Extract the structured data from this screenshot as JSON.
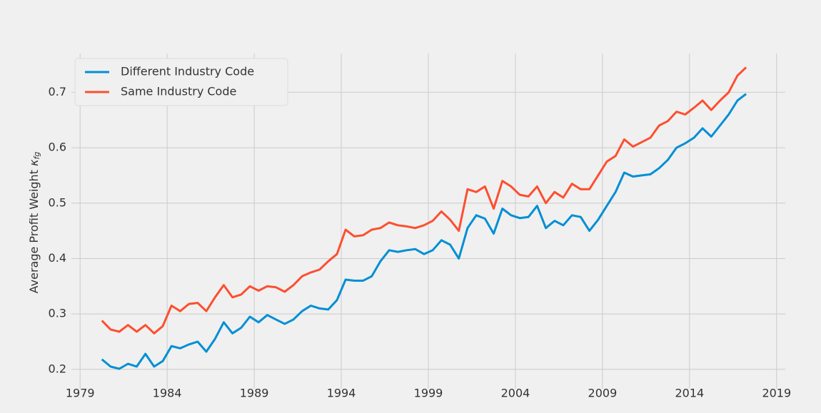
{
  "chart_data": {
    "type": "line",
    "y_label": "Average Profit Weight",
    "y_label_symbol": "κ",
    "y_label_subscript": "fg",
    "x": [
      1980.25,
      1980.75,
      1981.25,
      1981.75,
      1982.25,
      1982.75,
      1983.25,
      1983.75,
      1984.25,
      1984.75,
      1985.25,
      1985.75,
      1986.25,
      1986.75,
      1987.25,
      1987.75,
      1988.25,
      1988.75,
      1989.25,
      1989.75,
      1990.25,
      1990.75,
      1991.25,
      1991.75,
      1992.25,
      1992.75,
      1993.25,
      1993.75,
      1994.25,
      1994.75,
      1995.25,
      1995.75,
      1996.25,
      1996.75,
      1997.25,
      1997.75,
      1998.25,
      1998.75,
      1999.25,
      1999.75,
      2000.25,
      2000.75,
      2001.25,
      2001.75,
      2002.25,
      2002.75,
      2003.25,
      2003.75,
      2004.25,
      2004.75,
      2005.25,
      2005.75,
      2006.25,
      2006.75,
      2007.25,
      2007.75,
      2008.25,
      2008.75,
      2009.25,
      2009.75,
      2010.25,
      2010.75,
      2011.25,
      2011.75,
      2012.25,
      2012.75,
      2013.25,
      2013.75,
      2014.25,
      2014.75,
      2015.25,
      2015.75,
      2016.25,
      2016.75,
      2017.25
    ],
    "series": [
      {
        "name": "Different Industry Code",
        "color": "#008fd5",
        "values": [
          0.218,
          0.205,
          0.201,
          0.21,
          0.205,
          0.228,
          0.205,
          0.215,
          0.242,
          0.238,
          0.245,
          0.25,
          0.232,
          0.255,
          0.285,
          0.265,
          0.275,
          0.295,
          0.285,
          0.298,
          0.29,
          0.282,
          0.29,
          0.305,
          0.315,
          0.31,
          0.308,
          0.325,
          0.362,
          0.36,
          0.36,
          0.368,
          0.395,
          0.415,
          0.412,
          0.415,
          0.417,
          0.408,
          0.415,
          0.433,
          0.425,
          0.4,
          0.455,
          0.478,
          0.472,
          0.445,
          0.49,
          0.478,
          0.473,
          0.475,
          0.495,
          0.455,
          0.468,
          0.46,
          0.478,
          0.475,
          0.45,
          0.47,
          0.495,
          0.52,
          0.555,
          0.548,
          0.55,
          0.552,
          0.563,
          0.578,
          0.6,
          0.608,
          0.618,
          0.635,
          0.62,
          0.64,
          0.66,
          0.685,
          0.697
        ]
      },
      {
        "name": "Same Industry Code",
        "color": "#fc4f30",
        "values": [
          0.288,
          0.272,
          0.268,
          0.28,
          0.268,
          0.28,
          0.265,
          0.278,
          0.315,
          0.305,
          0.318,
          0.32,
          0.305,
          0.33,
          0.352,
          0.33,
          0.335,
          0.35,
          0.342,
          0.35,
          0.348,
          0.34,
          0.352,
          0.368,
          0.375,
          0.38,
          0.395,
          0.408,
          0.452,
          0.44,
          0.442,
          0.452,
          0.455,
          0.465,
          0.46,
          0.458,
          0.455,
          0.46,
          0.468,
          0.485,
          0.47,
          0.45,
          0.525,
          0.52,
          0.53,
          0.49,
          0.54,
          0.53,
          0.515,
          0.512,
          0.53,
          0.5,
          0.52,
          0.51,
          0.535,
          0.525,
          0.525,
          0.55,
          0.575,
          0.585,
          0.615,
          0.602,
          0.61,
          0.618,
          0.64,
          0.648,
          0.665,
          0.66,
          0.672,
          0.685,
          0.668,
          0.685,
          0.7,
          0.73,
          0.745
        ]
      }
    ],
    "xlim": [
      1978.5,
      2019.5
    ],
    "xticks": [
      1979,
      1984,
      1989,
      1994,
      1999,
      2004,
      2009,
      2014,
      2019
    ],
    "ylim": [
      0.165,
      0.77
    ],
    "yticks": [
      0.2,
      0.3,
      0.4,
      0.5,
      0.6,
      0.7
    ],
    "grid": true,
    "legend": "upper left"
  }
}
